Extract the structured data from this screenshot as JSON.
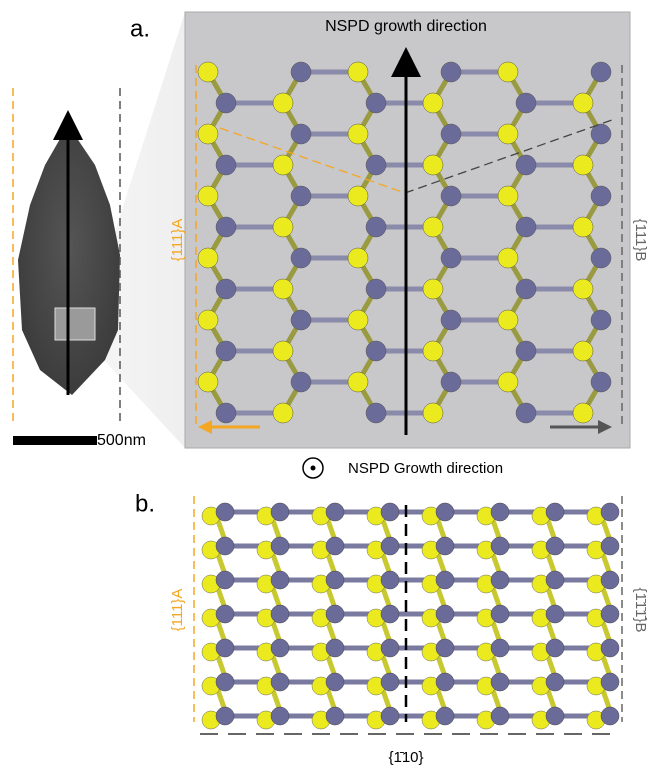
{
  "panel_a": {
    "label": "a.",
    "arrow_label": "NSPD growth direction",
    "left_face": "{111}A",
    "right_face": "{111}B",
    "scale_bar": "500nm"
  },
  "panel_b": {
    "label": "b.",
    "out_of_plane": "NSPD Growth direction",
    "left_face": "{111}A",
    "right_face": "{1̄1̄1̄}B",
    "bottom_face": "{1̄10}"
  }
}
